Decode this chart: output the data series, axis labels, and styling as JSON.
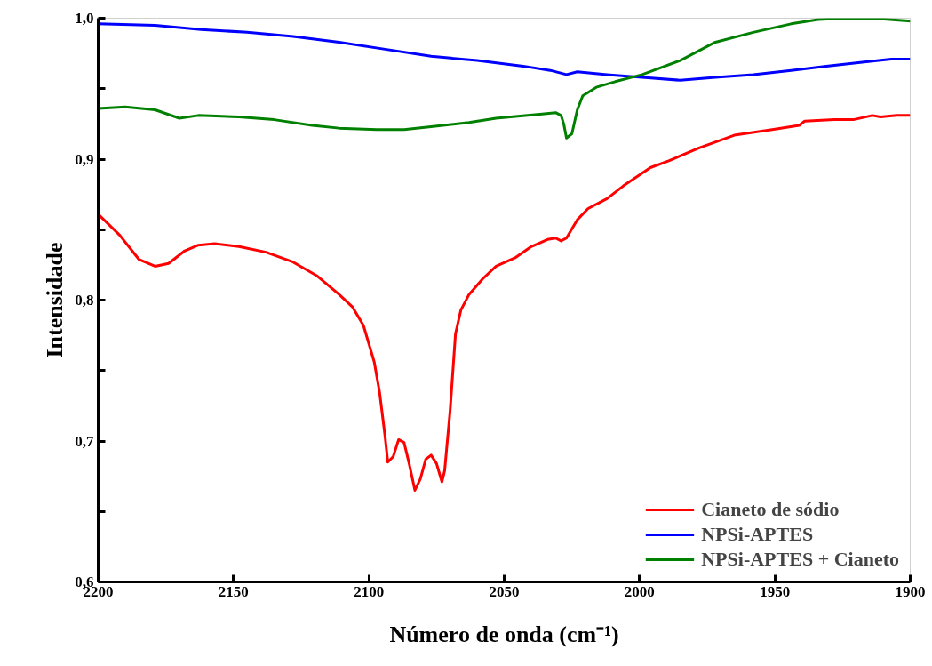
{
  "chart_data": {
    "type": "line",
    "xlabel": "Número de onda (cm⁻¹)",
    "ylabel": "Intensidade",
    "xlim": [
      2200,
      1900
    ],
    "xticks": [
      2200,
      2150,
      2100,
      2050,
      2000,
      1950,
      1900
    ],
    "ylim": [
      0.6,
      1.0
    ],
    "yticks": [
      {
        "value": 0.6,
        "label": "0,6"
      },
      {
        "value": 0.65,
        "label": null
      },
      {
        "value": 0.7,
        "label": "0,7"
      },
      {
        "value": 0.75,
        "label": null
      },
      {
        "value": 0.8,
        "label": "0,8"
      },
      {
        "value": 0.85,
        "label": null
      },
      {
        "value": 0.9,
        "label": "0,9"
      },
      {
        "value": 0.95,
        "label": null
      },
      {
        "value": 1.0,
        "label": "1,0"
      }
    ],
    "grid": false,
    "legend": "bottom right",
    "marker": "none",
    "line_style": "solid",
    "series": [
      {
        "name": "Cianeto de sódio",
        "color": "#ff0000",
        "x": [
          2200,
          2192,
          2185,
          2179,
          2174,
          2168,
          2163,
          2157,
          2148,
          2138,
          2128,
          2119,
          2111,
          2106,
          2102,
          2100,
          2098,
          2096,
          2094,
          2093,
          2091,
          2089,
          2087,
          2085,
          2083,
          2081,
          2079,
          2077,
          2075,
          2073,
          2072,
          2070,
          2068,
          2066,
          2063,
          2058,
          2053,
          2046,
          2040,
          2034,
          2031,
          2029,
          2027,
          2023,
          2019,
          2012,
          2006,
          1996,
          1989,
          1978,
          1965,
          1951,
          1941,
          1939,
          1928,
          1921,
          1914,
          1911,
          1905,
          1900
        ],
        "values": [
          0.861,
          0.846,
          0.829,
          0.824,
          0.826,
          0.835,
          0.839,
          0.84,
          0.838,
          0.834,
          0.827,
          0.817,
          0.804,
          0.795,
          0.782,
          0.769,
          0.756,
          0.734,
          0.703,
          0.685,
          0.689,
          0.701,
          0.699,
          0.683,
          0.665,
          0.673,
          0.687,
          0.69,
          0.684,
          0.671,
          0.679,
          0.721,
          0.776,
          0.793,
          0.804,
          0.815,
          0.824,
          0.83,
          0.838,
          0.843,
          0.844,
          0.842,
          0.844,
          0.857,
          0.865,
          0.872,
          0.881,
          0.894,
          0.899,
          0.908,
          0.917,
          0.921,
          0.924,
          0.927,
          0.928,
          0.928,
          0.931,
          0.93,
          0.931,
          0.931
        ]
      },
      {
        "name": "NPSi-APTES",
        "color": "#0000ff",
        "x": [
          2200,
          2179,
          2162,
          2145,
          2128,
          2111,
          2094,
          2077,
          2060,
          2043,
          2033,
          2027,
          2023,
          2012,
          1999,
          1985,
          1972,
          1958,
          1944,
          1931,
          1917,
          1907,
          1900
        ],
        "values": [
          0.996,
          0.995,
          0.992,
          0.99,
          0.987,
          0.983,
          0.978,
          0.973,
          0.97,
          0.966,
          0.963,
          0.96,
          0.962,
          0.96,
          0.958,
          0.956,
          0.958,
          0.96,
          0.963,
          0.966,
          0.969,
          0.971,
          0.971
        ]
      },
      {
        "name": "NPSi-APTES + Cianeto",
        "color": "#008000",
        "x": [
          2200,
          2190,
          2179,
          2170,
          2163,
          2148,
          2135,
          2121,
          2111,
          2097,
          2087,
          2077,
          2063,
          2053,
          2036,
          2031,
          2029,
          2028,
          2027,
          2025,
          2023,
          2021,
          2016,
          2009,
          1999,
          1985,
          1972,
          1958,
          1944,
          1934,
          1924,
          1914,
          1900
        ],
        "values": [
          0.936,
          0.937,
          0.935,
          0.929,
          0.931,
          0.93,
          0.928,
          0.924,
          0.922,
          0.921,
          0.921,
          0.923,
          0.926,
          0.929,
          0.932,
          0.933,
          0.931,
          0.925,
          0.915,
          0.918,
          0.935,
          0.945,
          0.951,
          0.955,
          0.96,
          0.97,
          0.983,
          0.99,
          0.996,
          0.999,
          1.0,
          1.0,
          0.998
        ]
      }
    ]
  }
}
